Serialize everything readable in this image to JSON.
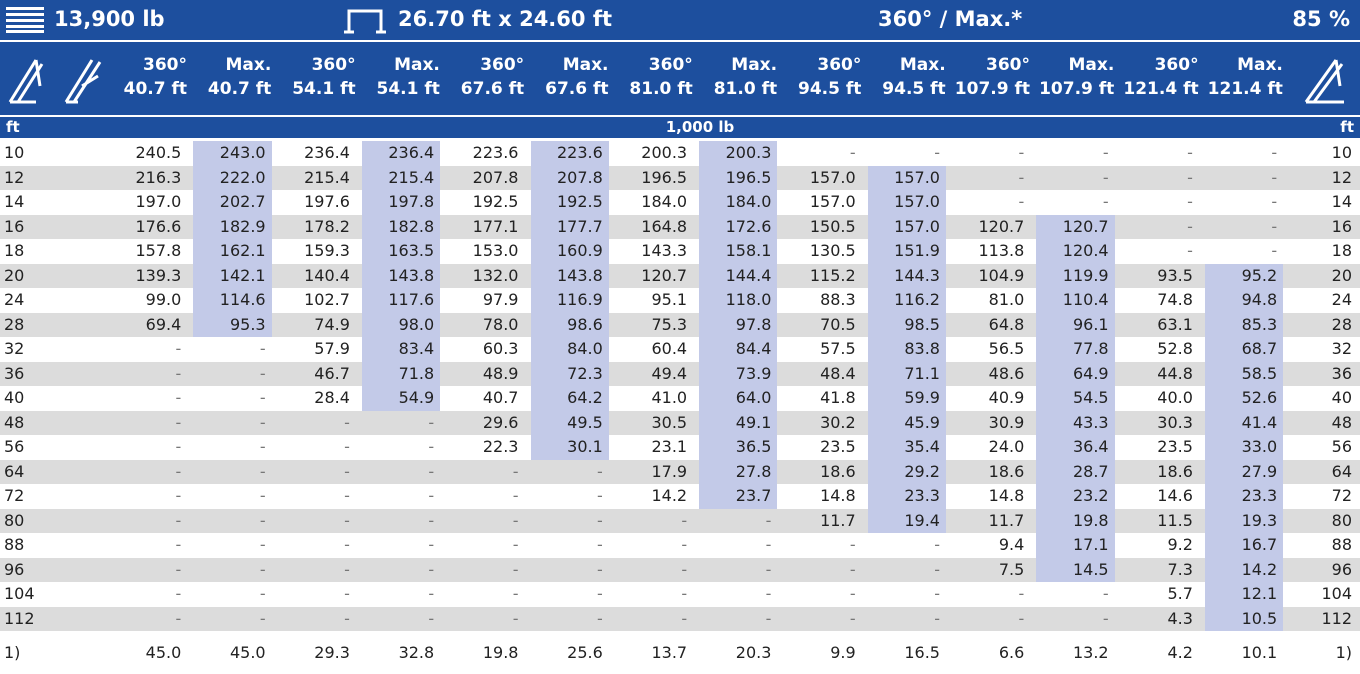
{
  "top_bar": {
    "weight": "13,900 lb",
    "outrigger": "26.70 ft x 24.60 ft",
    "mode": "360° / Max.*",
    "percent": "85 %"
  },
  "table": {
    "columns": [
      {
        "angle": "360°",
        "length": "40.7 ft"
      },
      {
        "angle": "Max.",
        "length": "40.7 ft"
      },
      {
        "angle": "360°",
        "length": "54.1 ft"
      },
      {
        "angle": "Max.",
        "length": "54.1 ft"
      },
      {
        "angle": "360°",
        "length": "67.6 ft"
      },
      {
        "angle": "Max.",
        "length": "67.6 ft"
      },
      {
        "angle": "360°",
        "length": "81.0 ft"
      },
      {
        "angle": "Max.",
        "length": "81.0 ft"
      },
      {
        "angle": "360°",
        "length": "94.5 ft"
      },
      {
        "angle": "Max.",
        "length": "94.5 ft"
      },
      {
        "angle": "360°",
        "length": "107.9 ft"
      },
      {
        "angle": "Max.",
        "length": "107.9 ft"
      },
      {
        "angle": "360°",
        "length": "121.4 ft"
      },
      {
        "angle": "Max.",
        "length": "121.4 ft"
      }
    ],
    "unit_radius": "ft",
    "unit_load": "1,000 lb",
    "rows": [
      [
        "10",
        "240.5",
        "243.0",
        "236.4",
        "236.4",
        "223.6",
        "223.6",
        "200.3",
        "200.3",
        "-",
        "-",
        "-",
        "-",
        "-",
        "-"
      ],
      [
        "12",
        "216.3",
        "222.0",
        "215.4",
        "215.4",
        "207.8",
        "207.8",
        "196.5",
        "196.5",
        "157.0",
        "157.0",
        "-",
        "-",
        "-",
        "-"
      ],
      [
        "14",
        "197.0",
        "202.7",
        "197.6",
        "197.8",
        "192.5",
        "192.5",
        "184.0",
        "184.0",
        "157.0",
        "157.0",
        "-",
        "-",
        "-",
        "-"
      ],
      [
        "16",
        "176.6",
        "182.9",
        "178.2",
        "182.8",
        "177.1",
        "177.7",
        "164.8",
        "172.6",
        "150.5",
        "157.0",
        "120.7",
        "120.7",
        "-",
        "-"
      ],
      [
        "18",
        "157.8",
        "162.1",
        "159.3",
        "163.5",
        "153.0",
        "160.9",
        "143.3",
        "158.1",
        "130.5",
        "151.9",
        "113.8",
        "120.4",
        "-",
        "-"
      ],
      [
        "20",
        "139.3",
        "142.1",
        "140.4",
        "143.8",
        "132.0",
        "143.8",
        "120.7",
        "144.4",
        "115.2",
        "144.3",
        "104.9",
        "119.9",
        "93.5",
        "95.2"
      ],
      [
        "24",
        "99.0",
        "114.6",
        "102.7",
        "117.6",
        "97.9",
        "116.9",
        "95.1",
        "118.0",
        "88.3",
        "116.2",
        "81.0",
        "110.4",
        "74.8",
        "94.8"
      ],
      [
        "28",
        "69.4",
        "95.3",
        "74.9",
        "98.0",
        "78.0",
        "98.6",
        "75.3",
        "97.8",
        "70.5",
        "98.5",
        "64.8",
        "96.1",
        "63.1",
        "85.3"
      ],
      [
        "32",
        "-",
        "-",
        "57.9",
        "83.4",
        "60.3",
        "84.0",
        "60.4",
        "84.4",
        "57.5",
        "83.8",
        "56.5",
        "77.8",
        "52.8",
        "68.7"
      ],
      [
        "36",
        "-",
        "-",
        "46.7",
        "71.8",
        "48.9",
        "72.3",
        "49.4",
        "73.9",
        "48.4",
        "71.1",
        "48.6",
        "64.9",
        "44.8",
        "58.5"
      ],
      [
        "40",
        "-",
        "-",
        "28.4",
        "54.9",
        "40.7",
        "64.2",
        "41.0",
        "64.0",
        "41.8",
        "59.9",
        "40.9",
        "54.5",
        "40.0",
        "52.6"
      ],
      [
        "48",
        "-",
        "-",
        "-",
        "-",
        "29.6",
        "49.5",
        "30.5",
        "49.1",
        "30.2",
        "45.9",
        "30.9",
        "43.3",
        "30.3",
        "41.4"
      ],
      [
        "56",
        "-",
        "-",
        "-",
        "-",
        "22.3",
        "30.1",
        "23.1",
        "36.5",
        "23.5",
        "35.4",
        "24.0",
        "36.4",
        "23.5",
        "33.0"
      ],
      [
        "64",
        "-",
        "-",
        "-",
        "-",
        "-",
        "-",
        "17.9",
        "27.8",
        "18.6",
        "29.2",
        "18.6",
        "28.7",
        "18.6",
        "27.9"
      ],
      [
        "72",
        "-",
        "-",
        "-",
        "-",
        "-",
        "-",
        "14.2",
        "23.7",
        "14.8",
        "23.3",
        "14.8",
        "23.2",
        "14.6",
        "23.3"
      ],
      [
        "80",
        "-",
        "-",
        "-",
        "-",
        "-",
        "-",
        "-",
        "-",
        "11.7",
        "19.4",
        "11.7",
        "19.8",
        "11.5",
        "19.3"
      ],
      [
        "88",
        "-",
        "-",
        "-",
        "-",
        "-",
        "-",
        "-",
        "-",
        "-",
        "-",
        "9.4",
        "17.1",
        "9.2",
        "16.7"
      ],
      [
        "96",
        "-",
        "-",
        "-",
        "-",
        "-",
        "-",
        "-",
        "-",
        "-",
        "-",
        "7.5",
        "14.5",
        "7.3",
        "14.2"
      ],
      [
        "104",
        "-",
        "-",
        "-",
        "-",
        "-",
        "-",
        "-",
        "-",
        "-",
        "-",
        "-",
        "-",
        "5.7",
        "12.1"
      ],
      [
        "112",
        "-",
        "-",
        "-",
        "-",
        "-",
        "-",
        "-",
        "-",
        "-",
        "-",
        "-",
        "-",
        "4.3",
        "10.5"
      ]
    ],
    "footer": {
      "label": "1)",
      "values": [
        "45.0",
        "45.0",
        "29.3",
        "32.8",
        "19.8",
        "25.6",
        "13.7",
        "20.3",
        "9.9",
        "16.5",
        "6.6",
        "13.2",
        "4.2",
        "10.1"
      ]
    }
  }
}
